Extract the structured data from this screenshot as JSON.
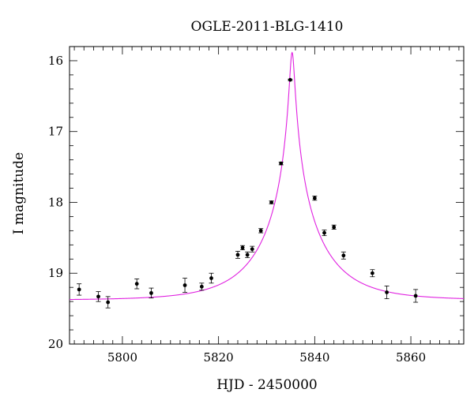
{
  "chart_data": {
    "type": "scatter",
    "title": "OGLE-2011-BLG-1410",
    "xlabel": "HJD - 2450000",
    "ylabel": "I magnitude",
    "xlim": [
      5789,
      5871
    ],
    "ylim": [
      20,
      15.8
    ],
    "y_inverted": true,
    "x_ticks": [
      5800,
      5820,
      5840,
      5860
    ],
    "y_ticks": [
      16,
      17,
      18,
      19,
      20
    ],
    "x_minor_step": 2,
    "y_minor_step": 0.2,
    "grid": false,
    "colors": {
      "points": "#000000",
      "model": "#e020e0"
    },
    "series": [
      {
        "type": "scatter_errorbar",
        "points": [
          {
            "x": 5791.0,
            "y": 19.23,
            "err": 0.08
          },
          {
            "x": 5795.0,
            "y": 19.33,
            "err": 0.07
          },
          {
            "x": 5797.0,
            "y": 19.41,
            "err": 0.08
          },
          {
            "x": 5803.0,
            "y": 19.15,
            "err": 0.07
          },
          {
            "x": 5806.0,
            "y": 19.28,
            "err": 0.07
          },
          {
            "x": 5813.0,
            "y": 19.17,
            "err": 0.1
          },
          {
            "x": 5816.5,
            "y": 19.19,
            "err": 0.05
          },
          {
            "x": 5818.5,
            "y": 19.07,
            "err": 0.07
          },
          {
            "x": 5824.0,
            "y": 18.74,
            "err": 0.05
          },
          {
            "x": 5825.0,
            "y": 18.64,
            "err": 0.03
          },
          {
            "x": 5826.0,
            "y": 18.74,
            "err": 0.04
          },
          {
            "x": 5827.0,
            "y": 18.66,
            "err": 0.04
          },
          {
            "x": 5828.8,
            "y": 18.4,
            "err": 0.03
          },
          {
            "x": 5831.0,
            "y": 18.0,
            "err": 0.02
          },
          {
            "x": 5833.0,
            "y": 17.45,
            "err": 0.02
          },
          {
            "x": 5834.9,
            "y": 16.27,
            "err": 0.01
          },
          {
            "x": 5840.0,
            "y": 17.94,
            "err": 0.03
          },
          {
            "x": 5842.0,
            "y": 18.43,
            "err": 0.04
          },
          {
            "x": 5844.0,
            "y": 18.35,
            "err": 0.03
          },
          {
            "x": 5846.0,
            "y": 18.75,
            "err": 0.05
          },
          {
            "x": 5852.0,
            "y": 19.0,
            "err": 0.05
          },
          {
            "x": 5855.0,
            "y": 19.27,
            "err": 0.09
          },
          {
            "x": 5861.0,
            "y": 19.32,
            "err": 0.09
          }
        ]
      },
      {
        "type": "line",
        "model": "point-lens model curve",
        "t0": 5835.3,
        "tE": 12.5,
        "u0": 0.04,
        "baseline_mag": 19.38,
        "x_range": [
          5789,
          5871
        ]
      }
    ]
  }
}
